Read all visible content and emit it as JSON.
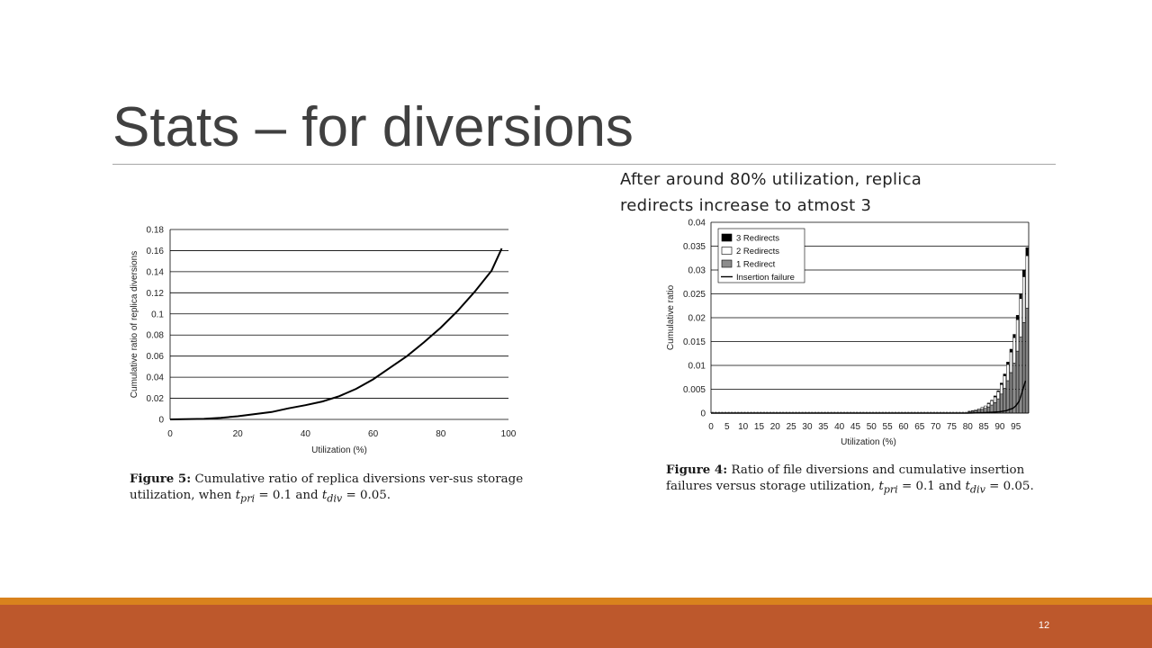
{
  "slide": {
    "title": "Stats – for diversions",
    "note": "After around 80% utilization, replica redirects increase to atmost 3",
    "page_number": "12"
  },
  "figure5": {
    "caption_label": "Figure 5:",
    "caption_pre": " Cumulative ratio of replica diversions ver-sus storage utilization, when ",
    "caption_mid": " and ",
    "caption_post": ".",
    "eq1_var": "t",
    "eq1_sub": "pri",
    "eq1_val": " = 0.1",
    "eq2_var": "t",
    "eq2_sub": "div",
    "eq2_val": " = 0.05"
  },
  "figure4": {
    "caption_label": "Figure 4:",
    "caption_pre": " Ratio of file diversions and cumulative insertion failures versus storage utilization, ",
    "caption_mid": " and ",
    "caption_post": ".",
    "eq1_var": "t",
    "eq1_sub": "pri",
    "eq1_val": " = 0.1",
    "eq2_var": "t",
    "eq2_sub": "div",
    "eq2_val": " = 0.05"
  },
  "chart_data": [
    {
      "type": "line",
      "xlabel": "Utilization (%)",
      "ylabel": "Cumulative ratio of replica diversions",
      "xlim": [
        0,
        100
      ],
      "ylim": [
        0,
        0.18
      ],
      "xticks": [
        "0",
        "20",
        "40",
        "60",
        "80",
        "100"
      ],
      "yticks": [
        "0",
        "0.02",
        "0.04",
        "0.06",
        "0.08",
        "0.1",
        "0.12",
        "0.14",
        "0.16",
        "0.18"
      ],
      "grid": "horizontal",
      "series": [
        {
          "x": [
            0,
            10,
            15,
            20,
            25,
            30,
            35,
            40,
            45,
            50,
            55,
            60,
            65,
            70,
            75,
            80,
            85,
            90,
            95,
            97,
            98
          ],
          "y": [
            0,
            0.0005,
            0.0015,
            0.003,
            0.005,
            0.007,
            0.0105,
            0.0135,
            0.017,
            0.022,
            0.029,
            0.038,
            0.049,
            0.06,
            0.073,
            0.087,
            0.103,
            0.121,
            0.141,
            0.155,
            0.162
          ]
        }
      ]
    },
    {
      "type": "bar",
      "stacked": true,
      "xlabel": "Utilization (%)",
      "ylabel": "Cumulative ratio",
      "xlim": [
        0,
        99
      ],
      "ylim": [
        0,
        0.04
      ],
      "xticks": [
        "0",
        "5",
        "10",
        "15",
        "20",
        "25",
        "30",
        "35",
        "40",
        "45",
        "50",
        "55",
        "60",
        "65",
        "70",
        "75",
        "80",
        "85",
        "90",
        "95"
      ],
      "yticks": [
        "0",
        "0.005",
        "0.01",
        "0.015",
        "0.02",
        "0.025",
        "0.03",
        "0.035",
        "0.04"
      ],
      "grid": "horizontal",
      "legend_position": "top-left",
      "legend": [
        "3 Redirects",
        "2 Redirects",
        "1 Redirect",
        "Insertion failure"
      ],
      "x": [
        80,
        81,
        82,
        83,
        84,
        85,
        86,
        87,
        88,
        89,
        90,
        91,
        92,
        93,
        94,
        95,
        96,
        97,
        98
      ],
      "series": [
        {
          "name": "1 Redirect",
          "color": "#8c8c8c",
          "values": [
            0.0003,
            0.0004,
            0.0005,
            0.0006,
            0.0008,
            0.001,
            0.0013,
            0.0017,
            0.0022,
            0.003,
            0.004,
            0.0052,
            0.0068,
            0.0085,
            0.0105,
            0.013,
            0.016,
            0.019,
            0.022
          ]
        },
        {
          "name": "2 Redirects",
          "color": "#ffffff",
          "values": [
            0.0001,
            0.0001,
            0.0002,
            0.0003,
            0.0004,
            0.0005,
            0.0007,
            0.0009,
            0.0012,
            0.0015,
            0.002,
            0.0026,
            0.0034,
            0.0043,
            0.0053,
            0.0066,
            0.008,
            0.0096,
            0.011
          ]
        },
        {
          "name": "3 Redirects",
          "color": "#000000",
          "values": [
            0,
            0,
            0,
            0,
            0,
            0,
            0.0001,
            0.0001,
            0.0002,
            0.0002,
            0.0003,
            0.0004,
            0.0005,
            0.0006,
            0.0007,
            0.0009,
            0.001,
            0.0014,
            0.0017
          ]
        },
        {
          "name": "Insertion failure",
          "type": "line",
          "color": "#000000",
          "x": [
            0,
            80,
            85,
            88,
            90,
            92,
            94,
            95,
            96,
            97,
            98
          ],
          "values": [
            0,
            0,
            0.0001,
            0.0002,
            0.0003,
            0.0005,
            0.001,
            0.0015,
            0.0025,
            0.0045,
            0.0068
          ]
        }
      ]
    }
  ]
}
